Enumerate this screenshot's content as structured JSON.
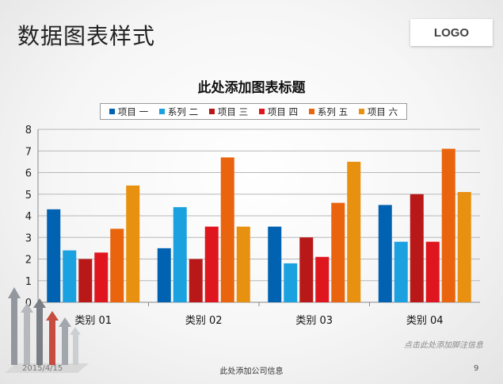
{
  "slide": {
    "title": "数据图表样式",
    "logo": "LOGO",
    "footnote": "点击此处添加脚注信息",
    "date": "2015/4/15",
    "company": "此处添加公司信息",
    "page": "9"
  },
  "chart_data": {
    "type": "bar",
    "title": "此处添加图表标题",
    "categories": [
      "类别 01",
      "类别 02",
      "类别 03",
      "类别 04"
    ],
    "series": [
      {
        "name": "项目 一",
        "color": "#0062b0",
        "values": [
          4.3,
          2.5,
          3.5,
          4.5
        ]
      },
      {
        "name": "系列 二",
        "color": "#1ba1e0",
        "values": [
          2.4,
          4.4,
          1.8,
          2.8
        ]
      },
      {
        "name": "项目 三",
        "color": "#b81818",
        "values": [
          2.0,
          2.0,
          3.0,
          5.0
        ]
      },
      {
        "name": "项目 四",
        "color": "#e0161e",
        "values": [
          2.3,
          3.5,
          2.1,
          2.8
        ]
      },
      {
        "name": "系列 五",
        "color": "#e9640c",
        "values": [
          3.4,
          6.7,
          4.6,
          7.1
        ]
      },
      {
        "name": "项目 六",
        "color": "#e8900f",
        "values": [
          5.4,
          3.5,
          6.5,
          5.1
        ]
      }
    ],
    "ylim": [
      0,
      8
    ],
    "yticks": [
      0,
      1,
      2,
      3,
      4,
      5,
      6,
      7,
      8
    ],
    "grid": true,
    "legend_position": "top"
  }
}
